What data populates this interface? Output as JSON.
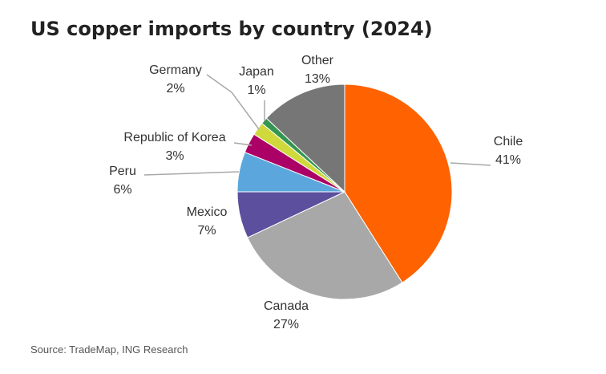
{
  "title": "US copper imports by country (2024)",
  "source": "Source: TradeMap, ING Research",
  "chart_data": {
    "type": "pie",
    "title": "US copper imports by country (2024)",
    "unit": "%",
    "legend": "none",
    "slices": [
      {
        "label": "Chile",
        "value": 41,
        "display": "41%",
        "color": "#FF6200"
      },
      {
        "label": "Canada",
        "value": 27,
        "display": "27%",
        "color": "#A8A8A8"
      },
      {
        "label": "Mexico",
        "value": 7,
        "display": "7%",
        "color": "#5B4F9E"
      },
      {
        "label": "Peru",
        "value": 6,
        "display": "6%",
        "color": "#5BA7DD"
      },
      {
        "label": "Republic of Korea",
        "value": 3,
        "display": "3%",
        "color": "#AB0066"
      },
      {
        "label": "Germany",
        "value": 2,
        "display": "2%",
        "color": "#D0D93C"
      },
      {
        "label": "Japan",
        "value": 1,
        "display": "1%",
        "color": "#349651"
      },
      {
        "label": "Other",
        "value": 13,
        "display": "13%",
        "color": "#767676"
      }
    ]
  }
}
